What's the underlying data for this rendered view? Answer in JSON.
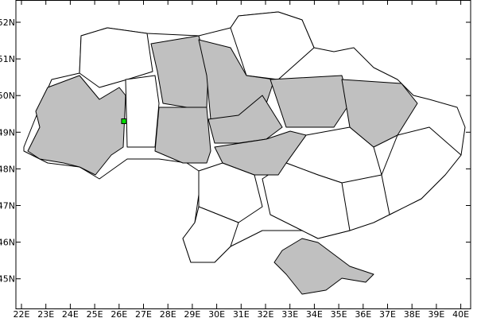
{
  "map": {
    "x_ticks": [
      "22E",
      "23E",
      "24E",
      "25E",
      "26E",
      "27E",
      "28E",
      "29E",
      "30E",
      "31E",
      "32E",
      "33E",
      "34E",
      "35E",
      "36E",
      "37E",
      "38E",
      "39E",
      "40E"
    ],
    "y_ticks": [
      "45N",
      "46N",
      "47N",
      "48N",
      "49N",
      "50N",
      "51N",
      "52N"
    ],
    "lon_range": [
      21.75,
      40.4
    ],
    "lat_range": [
      44.2,
      52.6
    ],
    "marker": {
      "lon": 26.2,
      "lat": 49.3,
      "color": "#00e000"
    },
    "colors": {
      "highlighted_region": "#c0c0c0",
      "region": "#ffffff",
      "border": "#000000"
    }
  }
}
